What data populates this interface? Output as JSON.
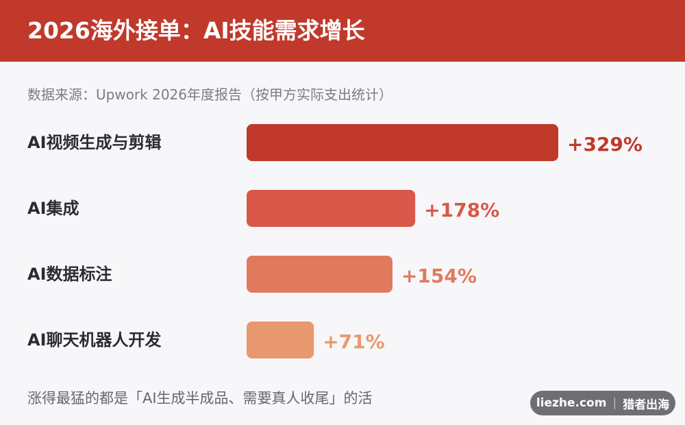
{
  "header": {
    "title": "2026海外接单：AI技能需求增长"
  },
  "source": "数据来源：Upwork 2026年度报告（按甲方实际支出统计）",
  "chart_data": {
    "type": "bar",
    "orientation": "horizontal",
    "categories": [
      "AI视频生成与剪辑",
      "AI集成",
      "AI数据标注",
      "AI聊天机器人开发"
    ],
    "values": [
      329,
      178,
      154,
      71
    ],
    "value_labels": [
      "+329%",
      "+178%",
      "+154%",
      "+71%"
    ],
    "colors": [
      "#c0392b",
      "#d9584a",
      "#e07a5f",
      "#e9996f"
    ],
    "unit": "%",
    "xlim": [
      0,
      329
    ],
    "grid": false,
    "legend": "none"
  },
  "footnote": "涨得最猛的都是「AI生成半成品、需要真人收尾」的活",
  "brand": {
    "site": "liezhe.com",
    "separator": "|",
    "name": "猎者出海"
  }
}
